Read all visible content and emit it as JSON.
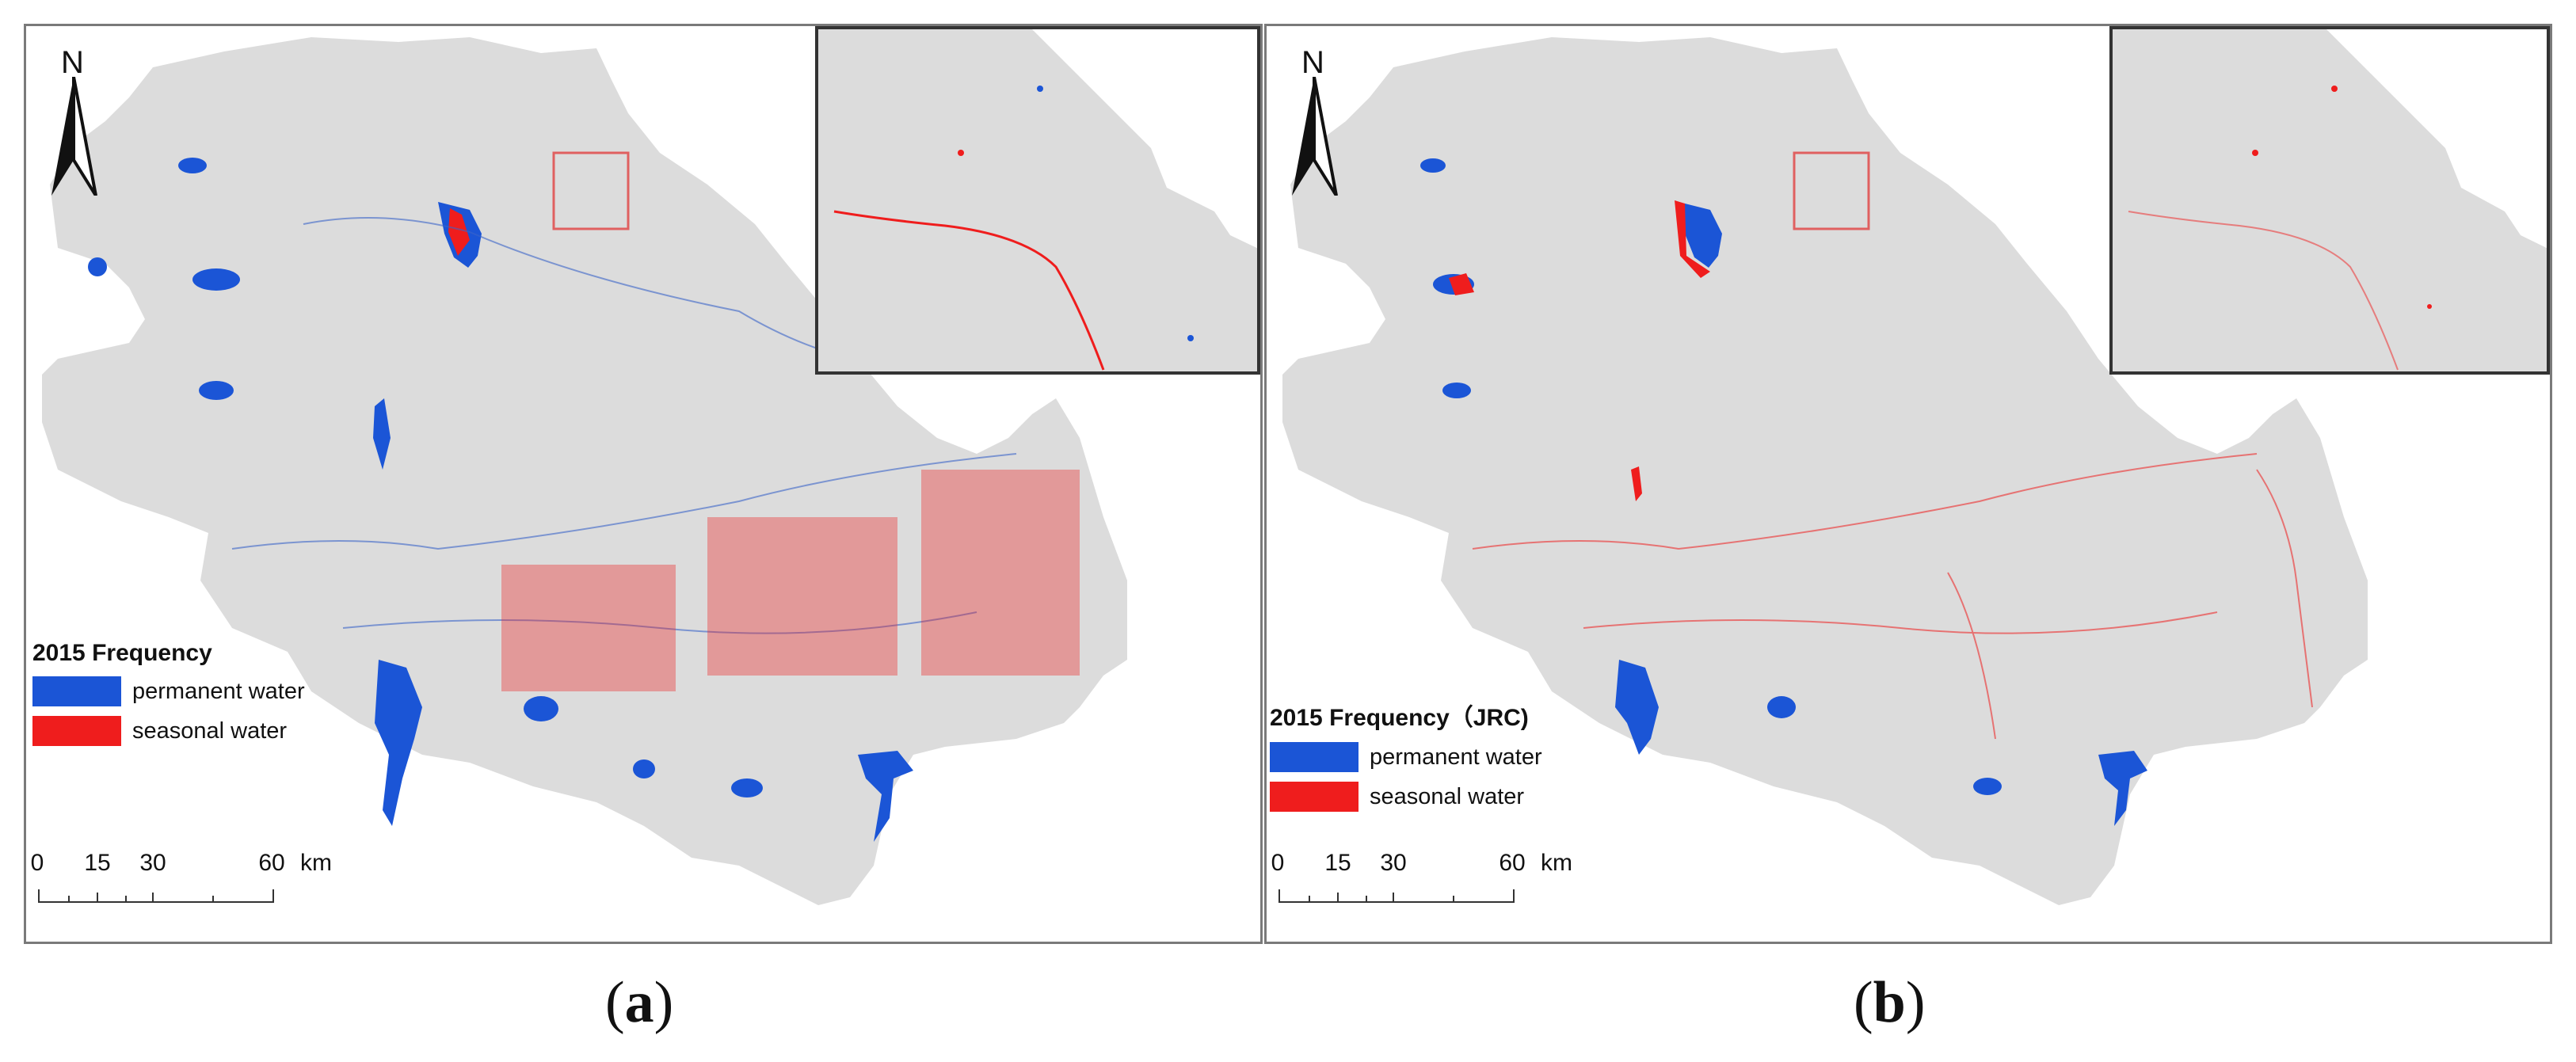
{
  "panels": [
    {
      "id": "a",
      "north_label": "N",
      "legend": {
        "title": "2015 Frequency",
        "items": [
          {
            "label": "permanent water",
            "color": "#1b55d6"
          },
          {
            "label": "seasonal water",
            "color": "#ef1d1d"
          }
        ]
      },
      "scalebar": {
        "ticks": [
          "0",
          "15",
          "30",
          "60"
        ],
        "unit": "km"
      },
      "caption_letter": "a"
    },
    {
      "id": "b",
      "north_label": "N",
      "legend": {
        "title": "2015 Frequency（JRC)",
        "items": [
          {
            "label": "permanent  water",
            "color": "#1b55d6"
          },
          {
            "label": "seasonal  water",
            "color": "#ef1d1d"
          }
        ]
      },
      "scalebar": {
        "ticks": [
          "0",
          "15",
          "30",
          "60"
        ],
        "unit": "km"
      },
      "caption_letter": "b"
    }
  ],
  "colors": {
    "land": "#dcdcdc",
    "permanent_water": "#1b55d6",
    "seasonal_water": "#ef1d1d",
    "inset_frame": "#333333",
    "locator_box": "#e06060"
  }
}
